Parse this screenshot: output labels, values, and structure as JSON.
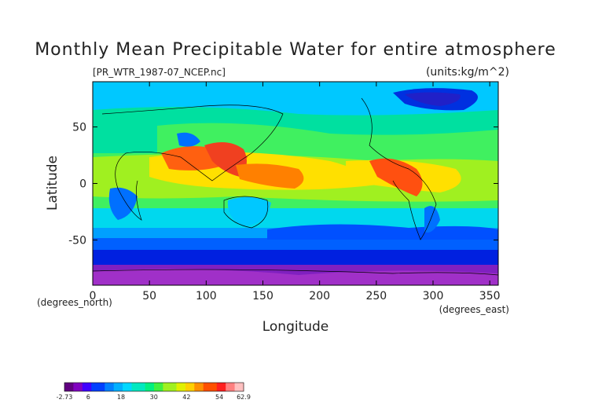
{
  "chart_data": {
    "type": "heatmap",
    "title": "Monthly Mean Precipitable Water for entire atmosphere",
    "subtitle_left": "[PR_WTR_1987-07_NCEP.nc]",
    "subtitle_right": "(units:kg/m^2)",
    "xlabel": "Longitude",
    "ylabel": "Latitude",
    "x_unit": "(degrees_east)",
    "y_unit": "(degrees_north)",
    "xlim": [
      0,
      357.5
    ],
    "ylim": [
      -90,
      90
    ],
    "x_ticks": [
      0,
      50,
      100,
      150,
      200,
      250,
      300,
      350
    ],
    "y_ticks": [
      -50,
      0,
      50
    ],
    "colorbar": {
      "min": -2.73,
      "max": 62.9,
      "tick_labels": [
        "-2.73",
        "6",
        "18",
        "30",
        "42",
        "54",
        "62.9"
      ],
      "tick_values": [
        -2.73,
        6,
        18,
        30,
        42,
        54,
        62.9
      ]
    },
    "grid": false
  }
}
